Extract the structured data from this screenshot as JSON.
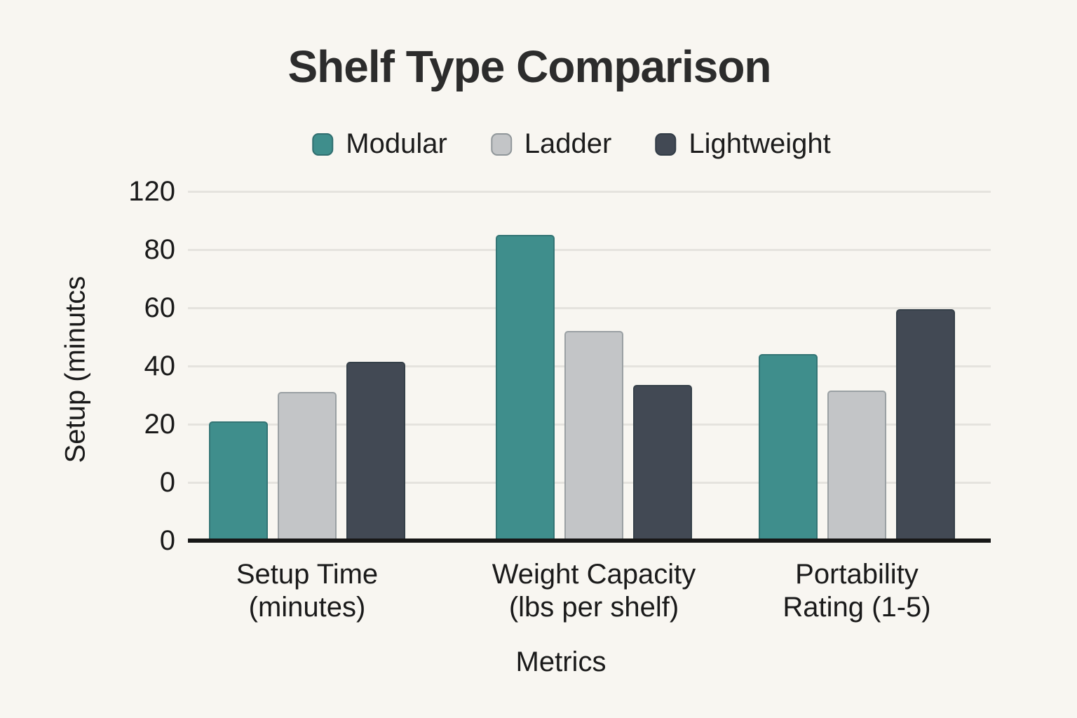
{
  "chart_data": {
    "type": "bar",
    "title": "Shelf Type Comparison",
    "xlabel": "Metrics",
    "ylabel": "Setup (minutcs",
    "legend_position": "top",
    "grid": true,
    "categories": [
      "Setup Time (minutes)",
      "Weight Capacity (lbs per shelf)",
      "Portability Rating (1-5)"
    ],
    "category_label_lines": [
      [
        "Setup Time",
        "(minutes)"
      ],
      [
        "Weight Capacity",
        "(lbs per shelf)"
      ],
      [
        "Portability",
        "Rating (1-5)"
      ]
    ],
    "series": [
      {
        "name": "Modular",
        "color": "#3f8e8c",
        "values": [
          21,
          85,
          44
        ]
      },
      {
        "name": "Ladder",
        "color": "#c3c5c7",
        "values": [
          31,
          52,
          31.5
        ]
      },
      {
        "name": "Lightweight",
        "color": "#424954",
        "values": [
          41.5,
          33.5,
          59.5
        ]
      }
    ],
    "y_ticks_top_to_bottom": [
      "120",
      "80",
      "60",
      "40",
      "20",
      "0",
      "0"
    ],
    "y_axis_layout": "seven evenly spaced ticks; duplicate 0 label at baseline; 80 to 120 spans a single tick step"
  },
  "colors": {
    "background": "#f8f6f1",
    "gridline": "#e5e3de",
    "axis_line": "#171717",
    "text": "#1a1a1a",
    "title": "#2c2c2c",
    "modular": "#3f8e8c",
    "ladder": "#c3c5c7",
    "lightweight": "#424954"
  }
}
